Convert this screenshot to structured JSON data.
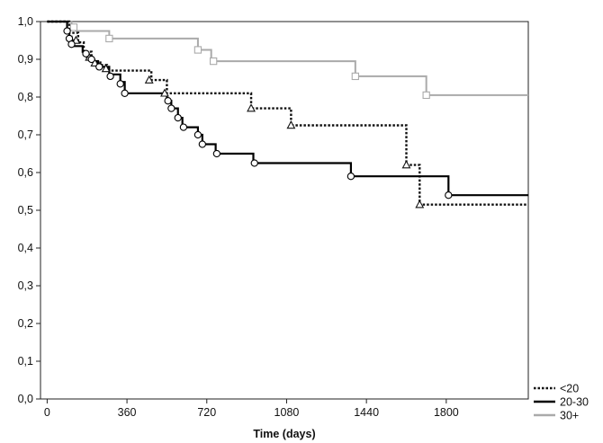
{
  "chart_data": {
    "type": "line",
    "subtype": "kaplan-meier step",
    "xlabel": "Time (days)",
    "ylabel": "",
    "xlim": [
      -30,
      2170
    ],
    "ylim": [
      0,
      1.0
    ],
    "x_ticks": [
      0,
      360,
      720,
      1080,
      1440,
      1800
    ],
    "x_tick_labels": [
      "0",
      "360",
      "720",
      "1080",
      "1440",
      "1800"
    ],
    "y_ticks": [
      0,
      0.1,
      0.2,
      0.3,
      0.4,
      0.5,
      0.6,
      0.7,
      0.8,
      0.9,
      1.0
    ],
    "y_tick_labels": [
      "0,0",
      "0,1",
      "0,2",
      "0,3",
      "0,4",
      "0,5",
      "0,6",
      "0,7",
      "0,8",
      "0,9",
      "1,0"
    ],
    "grid": false,
    "legend_position": "bottom-right",
    "colors": {
      "lt20": "#111111",
      "g20_30": "#000000",
      "g30p": "#aaaaaa"
    },
    "series": [
      {
        "name": "<20",
        "line_style": "dotted",
        "marker": "triangle",
        "color": "#111111",
        "steps": [
          [
            0,
            1.0
          ],
          [
            100,
            0.97
          ],
          [
            140,
            0.945
          ],
          [
            165,
            0.92
          ],
          [
            200,
            0.895
          ],
          [
            240,
            0.885
          ],
          [
            270,
            0.87
          ],
          [
            470,
            0.845
          ],
          [
            540,
            0.81
          ],
          [
            920,
            0.77
          ],
          [
            1100,
            0.725
          ],
          [
            1620,
            0.62
          ],
          [
            1680,
            0.515
          ],
          [
            2170,
            0.515
          ]
        ],
        "censor": [
          [
            130,
            0.95
          ],
          [
            190,
            0.905
          ],
          [
            215,
            0.89
          ],
          [
            265,
            0.875
          ],
          [
            460,
            0.845
          ],
          [
            530,
            0.81
          ],
          [
            920,
            0.77
          ],
          [
            1100,
            0.725
          ],
          [
            1620,
            0.62
          ],
          [
            1680,
            0.515
          ]
        ]
      },
      {
        "name": "20-30",
        "line_style": "solid",
        "marker": "circle",
        "color": "#000000",
        "steps": [
          [
            0,
            1.0
          ],
          [
            90,
            0.975
          ],
          [
            100,
            0.96
          ],
          [
            110,
            0.95
          ],
          [
            120,
            0.935
          ],
          [
            160,
            0.92
          ],
          [
            180,
            0.905
          ],
          [
            200,
            0.895
          ],
          [
            230,
            0.88
          ],
          [
            280,
            0.86
          ],
          [
            330,
            0.84
          ],
          [
            350,
            0.81
          ],
          [
            540,
            0.79
          ],
          [
            560,
            0.77
          ],
          [
            590,
            0.745
          ],
          [
            610,
            0.72
          ],
          [
            680,
            0.7
          ],
          [
            700,
            0.675
          ],
          [
            760,
            0.65
          ],
          [
            930,
            0.625
          ],
          [
            1370,
            0.59
          ],
          [
            1810,
            0.54
          ],
          [
            2170,
            0.54
          ]
        ],
        "censor": [
          [
            90,
            0.975
          ],
          [
            100,
            0.955
          ],
          [
            110,
            0.94
          ],
          [
            175,
            0.915
          ],
          [
            200,
            0.9
          ],
          [
            235,
            0.88
          ],
          [
            285,
            0.855
          ],
          [
            330,
            0.835
          ],
          [
            350,
            0.81
          ],
          [
            545,
            0.79
          ],
          [
            560,
            0.77
          ],
          [
            590,
            0.745
          ],
          [
            615,
            0.72
          ],
          [
            680,
            0.7
          ],
          [
            700,
            0.675
          ],
          [
            765,
            0.65
          ],
          [
            935,
            0.625
          ],
          [
            1370,
            0.59
          ],
          [
            1810,
            0.54
          ]
        ]
      },
      {
        "name": "30+",
        "line_style": "solid",
        "marker": "square",
        "color": "#aaaaaa",
        "steps": [
          [
            0,
            1.0
          ],
          [
            110,
            0.985
          ],
          [
            130,
            0.975
          ],
          [
            280,
            0.955
          ],
          [
            680,
            0.925
          ],
          [
            740,
            0.895
          ],
          [
            1390,
            0.855
          ],
          [
            1710,
            0.805
          ],
          [
            2170,
            0.805
          ]
        ],
        "censor": [
          [
            120,
            0.985
          ],
          [
            280,
            0.955
          ],
          [
            680,
            0.925
          ],
          [
            750,
            0.895
          ],
          [
            1390,
            0.855
          ],
          [
            1710,
            0.805
          ]
        ]
      }
    ]
  }
}
